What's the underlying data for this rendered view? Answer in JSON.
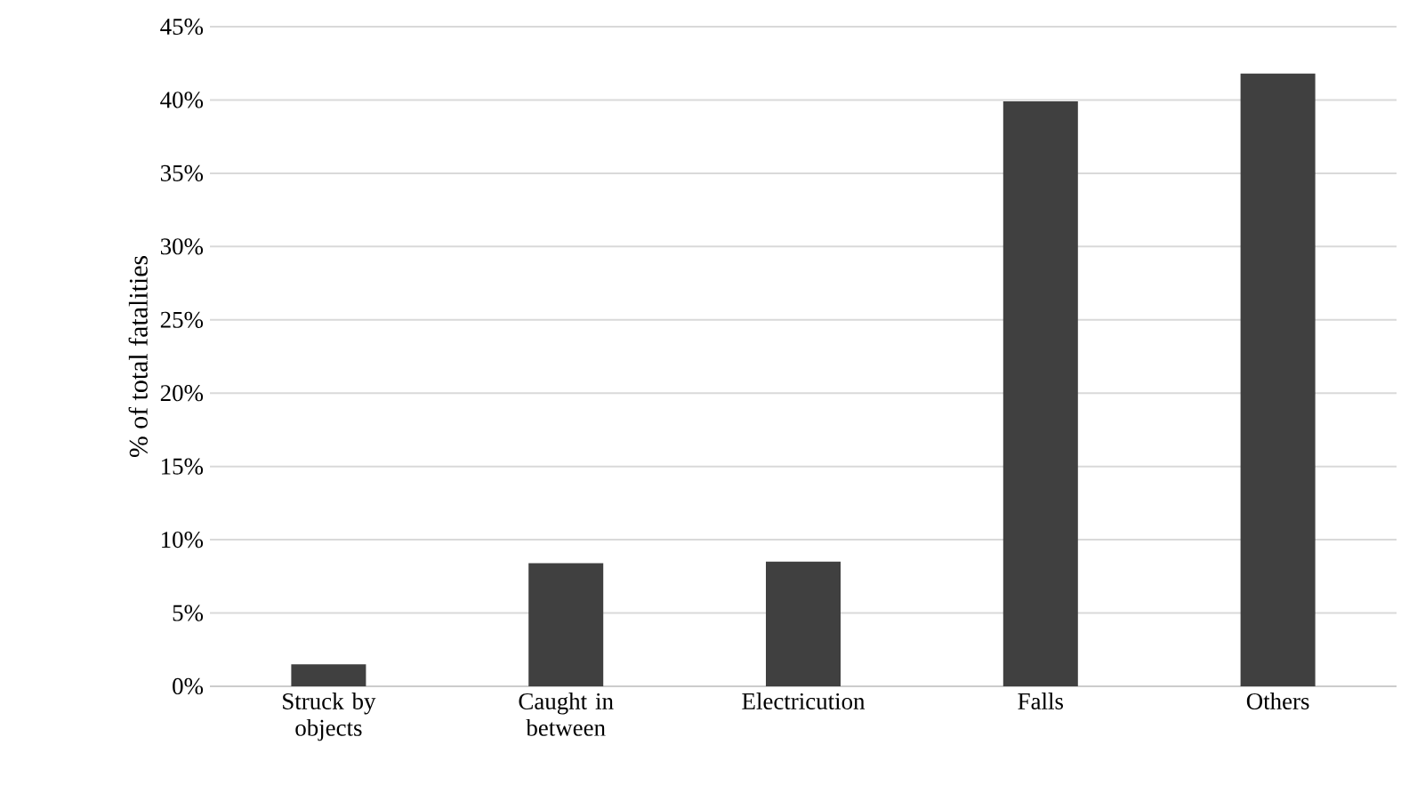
{
  "chart_data": {
    "type": "bar",
    "ylabel": "% of total fatalities",
    "categories": [
      "Struck by objects",
      "Caught in between",
      "Electricution",
      "Falls",
      "Others"
    ],
    "values": [
      1.5,
      8.4,
      8.5,
      39.9,
      41.8
    ],
    "color": "#404040",
    "ylim": [
      0,
      45
    ],
    "yticks": [
      {
        "value": 0,
        "label": "0%"
      },
      {
        "value": 5,
        "label": "5%"
      },
      {
        "value": 10,
        "label": "10%"
      },
      {
        "value": 15,
        "label": "15%"
      },
      {
        "value": 20,
        "label": "20%"
      },
      {
        "value": 25,
        "label": "25%"
      },
      {
        "value": 30,
        "label": "30%"
      },
      {
        "value": 35,
        "label": "35%"
      },
      {
        "value": 40,
        "label": "40%"
      },
      {
        "value": 45,
        "label": "45%"
      }
    ],
    "grid": "y"
  }
}
